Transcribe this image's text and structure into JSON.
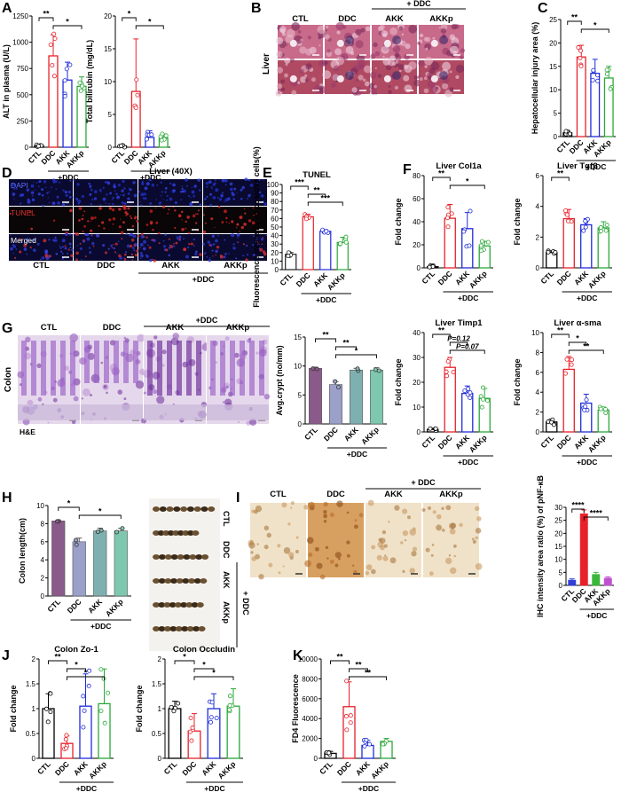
{
  "figure": {
    "panel_letters": [
      "A",
      "B",
      "C",
      "D",
      "E",
      "F",
      "G",
      "H",
      "I",
      "J",
      "K"
    ],
    "group_labels": [
      "CTL",
      "DDC",
      "AKK",
      "AKKp"
    ],
    "treatment_label": "+DDC",
    "treatment_label_spaced": "+ DDC",
    "colors": {
      "CTL": "#000000",
      "DDC": "#e8202a",
      "AKK": "#1f2bd8",
      "AKKp": "#2aa838"
    }
  },
  "images": {
    "liver_he": {
      "side_label": "Liver",
      "cols": [
        "CTL",
        "DDC",
        "AKK",
        "AKKp"
      ],
      "top_label": "+ DDC"
    },
    "liver_tunel": {
      "title": "Liver (40X)",
      "rows": [
        "DAPI",
        "TUNEL",
        "Merged"
      ],
      "cols": [
        "CTL",
        "DDC",
        "AKK",
        "AKKp"
      ],
      "bottom_label": "+DDC"
    },
    "colon_he": {
      "side_label": "Colon",
      "corner_label": "H&E",
      "cols": [
        "CTL",
        "DDC",
        "AKK",
        "AKKp"
      ],
      "top_label": "+DDC"
    },
    "colon_photo": {
      "labels": [
        "CTL",
        "DDC",
        "AKK",
        "AKKp"
      ],
      "side_label": "+ DDC"
    },
    "colon_ihc": {
      "cols": [
        "CTL",
        "DDC",
        "AKK",
        "AKKp"
      ],
      "top_label": "+ DDC"
    }
  },
  "chart_data": [
    {
      "id": "A1",
      "type": "bar",
      "ylabel": "ALT in plasma (U/L)",
      "categories": [
        "CTL",
        "DDC",
        "AKK",
        "AKKp"
      ],
      "values": [
        15,
        870,
        640,
        580
      ],
      "errors": [
        10,
        200,
        170,
        90
      ],
      "ylim": [
        0,
        1250
      ],
      "yticks": [
        0,
        250,
        500,
        750,
        1000,
        1250
      ],
      "group_label": "+DDC",
      "sig": [
        [
          "**",
          0,
          1
        ],
        [
          "*",
          1,
          3
        ]
      ]
    },
    {
      "id": "A2",
      "type": "bar",
      "ylabel": "Total bilirubin (mg/dL)",
      "categories": [
        "CTL",
        "DDC",
        "AKK",
        "AKKp"
      ],
      "values": [
        0.2,
        8.5,
        1.5,
        1.4
      ],
      "errors": [
        0.2,
        8,
        1,
        0.6
      ],
      "ylim": [
        0,
        20
      ],
      "yticks": [
        0,
        5,
        10,
        15,
        20
      ],
      "group_label": "+DDC",
      "sig": [
        [
          "*",
          0,
          1
        ],
        [
          "*",
          1,
          3
        ]
      ]
    },
    {
      "id": "C",
      "type": "bar",
      "ylabel": "Hepatocellular injury area (%)",
      "categories": [
        "CTL",
        "DDC",
        "AKK",
        "AKKp"
      ],
      "values": [
        0.8,
        17,
        13.5,
        12.5
      ],
      "errors": [
        0.5,
        2.5,
        3,
        2.5
      ],
      "ylim": [
        0,
        25
      ],
      "yticks": [
        0,
        5,
        10,
        15,
        20,
        25
      ],
      "group_label": "+DDC",
      "sig": [
        [
          "**",
          0,
          1
        ],
        [
          "*",
          1,
          3
        ]
      ]
    },
    {
      "id": "E",
      "type": "bar",
      "title": "TUNEL",
      "ylabel": "Fluorescence intensity of positive cells(%)",
      "categories": [
        "CTL",
        "DDC",
        "AKK",
        "AKKp"
      ],
      "values": [
        18,
        62,
        45,
        32
      ],
      "errors": [
        2,
        3,
        2,
        6
      ],
      "ylim": [
        0,
        100
      ],
      "yticks": [
        0,
        10,
        20,
        30,
        40,
        50,
        60,
        70,
        80,
        90,
        100
      ],
      "group_label": "+DDC",
      "sig": [
        [
          "***",
          0,
          1
        ],
        [
          "**",
          1,
          2
        ],
        [
          "***",
          1,
          3
        ]
      ]
    },
    {
      "id": "F1",
      "type": "bar",
      "title": "Liver Col1a",
      "ylabel": "Fold change",
      "categories": [
        "CTL",
        "DDC",
        "AKK",
        "AKKp"
      ],
      "values": [
        1,
        43,
        34,
        19
      ],
      "errors": [
        1,
        12,
        14,
        4
      ],
      "ylim": [
        0,
        80
      ],
      "yticks": [
        0,
        20,
        40,
        60,
        80
      ],
      "group_label": "+DDC",
      "sig": [
        [
          "**",
          0,
          1
        ],
        [
          "*",
          1,
          3
        ]
      ]
    },
    {
      "id": "F2",
      "type": "bar",
      "title": "Liver Tgfβ",
      "ylabel": "Fold change",
      "categories": [
        "CTL",
        "DDC",
        "AKK",
        "AKKp"
      ],
      "values": [
        1,
        3.2,
        2.8,
        2.6
      ],
      "errors": [
        0.1,
        0.6,
        0.4,
        0.4
      ],
      "ylim": [
        0,
        6
      ],
      "yticks": [
        0,
        2,
        4,
        6
      ],
      "group_label": "+DDC",
      "sig": [
        [
          "**",
          0,
          1
        ]
      ]
    },
    {
      "id": "F3",
      "type": "bar",
      "title": "Liver Timp1",
      "ylabel": "Fold change",
      "categories": [
        "CTL",
        "DDC",
        "AKK",
        "AKKp"
      ],
      "values": [
        1,
        26,
        15.5,
        13.5
      ],
      "errors": [
        0.5,
        4,
        3,
        4
      ],
      "ylim": [
        0,
        40
      ],
      "yticks": [
        0,
        10,
        20,
        30,
        40
      ],
      "group_label": "+DDC",
      "sig": [
        [
          "**",
          0,
          1
        ],
        [
          "P=0.12",
          1,
          2
        ],
        [
          "P=0.07",
          1,
          3
        ]
      ]
    },
    {
      "id": "F4",
      "type": "bar",
      "title": "Liver α-sma",
      "ylabel": "Fold change",
      "categories": [
        "CTL",
        "DDC",
        "AKK",
        "AKKp"
      ],
      "values": [
        1,
        6.3,
        2.9,
        2.2
      ],
      "errors": [
        0.3,
        1.3,
        0.9,
        0.3
      ],
      "ylim": [
        0,
        10
      ],
      "yticks": [
        0,
        2,
        4,
        6,
        8,
        10
      ],
      "group_label": "+DDC",
      "sig": [
        [
          "**",
          0,
          1
        ],
        [
          "*",
          1,
          2
        ],
        [
          "**",
          1,
          3
        ]
      ]
    },
    {
      "id": "G",
      "type": "bar",
      "ylabel": "Avg.crypt (no/mm)",
      "categories": [
        "CTL",
        "DDC",
        "AKK",
        "AKKp"
      ],
      "values": [
        9.6,
        6.8,
        9.3,
        9.3
      ],
      "errors": [
        0.2,
        0.5,
        0.3,
        0.4
      ],
      "ylim": [
        0,
        15
      ],
      "yticks": [
        0,
        5,
        10,
        15
      ],
      "group_label": "+DDC",
      "sig": [
        [
          "**",
          0,
          1
        ],
        [
          "**",
          1,
          2
        ],
        [
          "*",
          1,
          3
        ]
      ]
    },
    {
      "id": "H",
      "type": "bar",
      "ylabel": "Colon length(cm)",
      "categories": [
        "CTL",
        "DDC",
        "AKK",
        "AKKp"
      ],
      "values": [
        8.3,
        6.0,
        7.2,
        7.2
      ],
      "errors": [
        0.1,
        0.4,
        0.3,
        0.3
      ],
      "ylim": [
        0,
        10
      ],
      "yticks": [
        0,
        2,
        4,
        6,
        8,
        10
      ],
      "group_label": "+DDC",
      "sig": [
        [
          "*",
          0,
          1
        ],
        [
          "*",
          1,
          3
        ]
      ]
    },
    {
      "id": "I",
      "type": "bar",
      "ylabel": "IHC intensity area ratio (%) of pNF-κB",
      "categories": [
        "CTL",
        "DDC",
        "AKK",
        "AKKp"
      ],
      "values": [
        2,
        27.5,
        4.2,
        2.8
      ],
      "errors": [
        0.5,
        1.5,
        0.8,
        0.5
      ],
      "ylim": [
        0,
        30
      ],
      "yticks": [
        0,
        5,
        10,
        15,
        20,
        25,
        30
      ],
      "group_label": "+DDC",
      "sig": [
        [
          "****",
          0,
          1
        ],
        [
          "****",
          1,
          3
        ]
      ]
    },
    {
      "id": "J1",
      "type": "bar",
      "title": "Colon Zo-1",
      "ylabel": "Fold change",
      "categories": [
        "CTL",
        "DDC",
        "AKK",
        "AKKp"
      ],
      "values": [
        1,
        0.3,
        1.05,
        1.1
      ],
      "errors": [
        0.3,
        0.15,
        0.65,
        0.7
      ],
      "ylim": [
        0,
        2
      ],
      "yticks": [
        0,
        0.5,
        1,
        1.5,
        2
      ],
      "group_label": "+DDC",
      "sig": [
        [
          "**",
          0,
          1
        ],
        [
          "*",
          1,
          2
        ],
        [
          "*",
          1,
          3
        ]
      ]
    },
    {
      "id": "J2",
      "type": "bar",
      "title": "Colon Occludin",
      "ylabel": "Fold change",
      "categories": [
        "CTL",
        "DDC",
        "AKK",
        "AKKp"
      ],
      "values": [
        1,
        0.55,
        1.0,
        1.05
      ],
      "errors": [
        0.15,
        0.35,
        0.3,
        0.35
      ],
      "ylim": [
        0,
        2
      ],
      "yticks": [
        0,
        0.5,
        1,
        1.5,
        2
      ],
      "group_label": "+DDC",
      "sig": [
        [
          "*",
          0,
          1
        ],
        [
          "*",
          1,
          2
        ],
        [
          "*",
          1,
          3
        ]
      ]
    },
    {
      "id": "K",
      "type": "bar",
      "ylabel": "FD4 Fluorescence",
      "categories": [
        "CTL",
        "DDC",
        "AKK",
        "AKKp"
      ],
      "values": [
        500,
        5200,
        1300,
        1700
      ],
      "errors": [
        200,
        2500,
        500,
        300
      ],
      "ylim": [
        0,
        10000
      ],
      "yticks": [
        0,
        2000,
        4000,
        6000,
        8000,
        10000
      ],
      "group_label": "+DDC",
      "sig": [
        [
          "**",
          0,
          1
        ],
        [
          "**",
          1,
          2
        ],
        [
          "**",
          1,
          3
        ]
      ]
    }
  ]
}
